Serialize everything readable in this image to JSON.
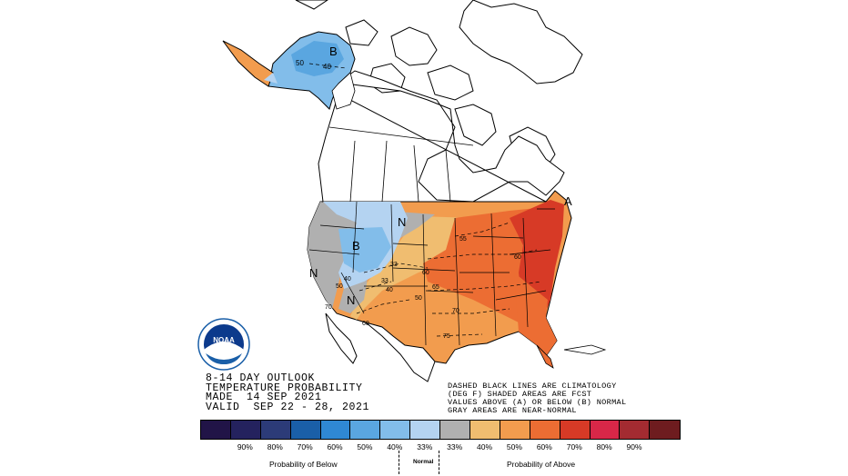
{
  "product": {
    "line1": "8-14 DAY OUTLOOK",
    "line2": "TEMPERATURE PROBABILITY",
    "line3": "MADE  14 SEP 2021",
    "line4": "VALID  SEP 22 - 28, 2021"
  },
  "notes": {
    "line1": "DASHED BLACK LINES ARE CLIMATOLOGY",
    "line2": "(DEG F) SHADED AREAS ARE FCST",
    "line3": "VALUES ABOVE (A) OR BELOW (B) NORMAL",
    "line4": "GRAY AREAS ARE NEAR-NORMAL"
  },
  "logo": {
    "text": "NOAA",
    "icon": "noaa-logo-icon"
  },
  "map_labels": {
    "alaska_b": "B",
    "alaska_50": "50",
    "alaska_40": "40",
    "west_b": "B",
    "west_n1": "N",
    "west_n2": "N",
    "plains_n": "N",
    "east_a": "A",
    "iso_55": "55",
    "iso_60": "60",
    "iso_65": "65",
    "iso_70": "70",
    "iso_75": "75",
    "iso_60b": "60",
    "iso_50": "50",
    "iso_40": "40",
    "iso_33": "33",
    "iso_33b": "33",
    "iso_40b": "40",
    "iso_50b": "50",
    "iso_60c": "60",
    "iso_70b": "70"
  },
  "legend": {
    "below_label": "Probability of Below",
    "normal_label": "Normal",
    "above_label": "Probability of Above",
    "colors": [
      "#211447",
      "#24225e",
      "#2c3b78",
      "#1a5fa8",
      "#2f88d4",
      "#5aa6e0",
      "#82bdea",
      "#b4d3f1",
      "#b0b0b0",
      "#f0bd70",
      "#f29c4e",
      "#ec6d33",
      "#d73a26",
      "#d82748",
      "#a32b31",
      "#6e1c1f"
    ],
    "percents": [
      "90%",
      "80%",
      "70%",
      "60%",
      "50%",
      "40%",
      "33%",
      "33%",
      "40%",
      "50%",
      "60%",
      "70%",
      "80%",
      "90%"
    ]
  }
}
